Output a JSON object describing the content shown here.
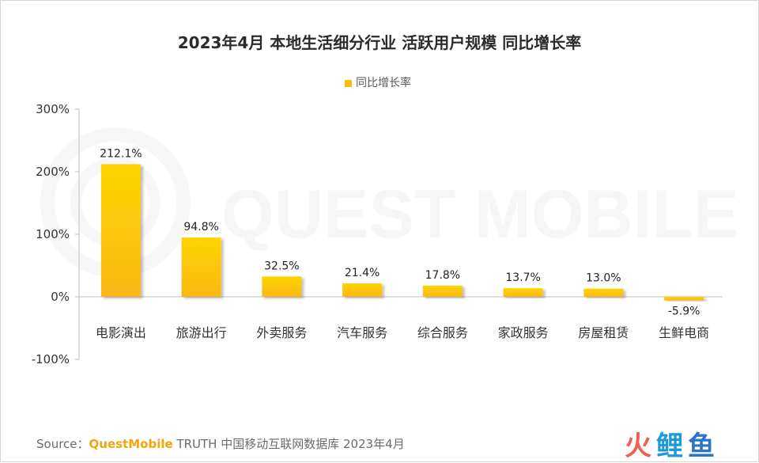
{
  "chart_data": {
    "type": "bar",
    "title": "2023年4月 本地生活细分行业 活跃用户规模 同比增长率",
    "legend": [
      "同比增长率"
    ],
    "categories": [
      "电影演出",
      "旅游出行",
      "外卖服务",
      "汽车服务",
      "综合服务",
      "家政服务",
      "房屋租赁",
      "生鲜电商"
    ],
    "series": [
      {
        "name": "同比增长率",
        "values": [
          212.1,
          94.8,
          32.5,
          21.4,
          17.8,
          13.7,
          13.0,
          -5.9
        ],
        "labels": [
          "212.1%",
          "94.8%",
          "32.5%",
          "21.4%",
          "17.8%",
          "13.7%",
          "13.0%",
          "-5.9%"
        ]
      }
    ],
    "y_ticks": [
      "300%",
      "200%",
      "100%",
      "0%",
      "-100%"
    ],
    "ylim": [
      -100,
      300
    ],
    "bar_color": "#f9bd0c",
    "bar_color_light": "#ffd400",
    "grid": false
  },
  "source": {
    "prefix": "Source：",
    "brand": "QuestMobile",
    "rest": " TRUTH 中国移动互联网数据库 2023年4月"
  },
  "watermark": "QUEST MOBILE",
  "corner_logo": [
    "火",
    "鲤",
    "鱼"
  ]
}
